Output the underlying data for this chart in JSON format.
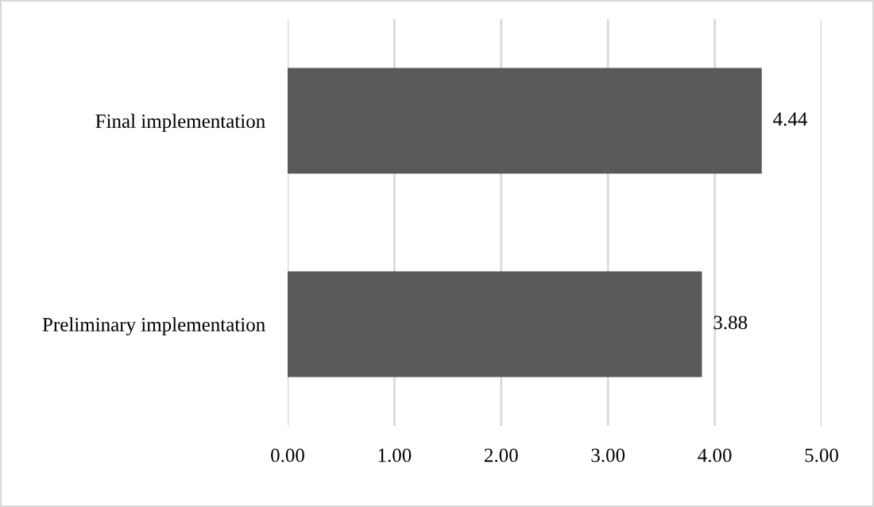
{
  "chart_data": {
    "type": "bar",
    "orientation": "horizontal",
    "categories": [
      "Final implementation",
      "Preliminary implementation"
    ],
    "values": [
      4.44,
      3.88
    ],
    "color": "#595959",
    "xlim": [
      0,
      5
    ],
    "xticks": [
      {
        "value": 0,
        "label": "0.00"
      },
      {
        "value": 1,
        "label": "1.00"
      },
      {
        "value": 2,
        "label": "2.00"
      },
      {
        "value": 3,
        "label": "3.00"
      },
      {
        "value": 4,
        "label": "4.00"
      },
      {
        "value": 5,
        "label": "5.00"
      }
    ],
    "grid": "x",
    "data_labels": true
  }
}
